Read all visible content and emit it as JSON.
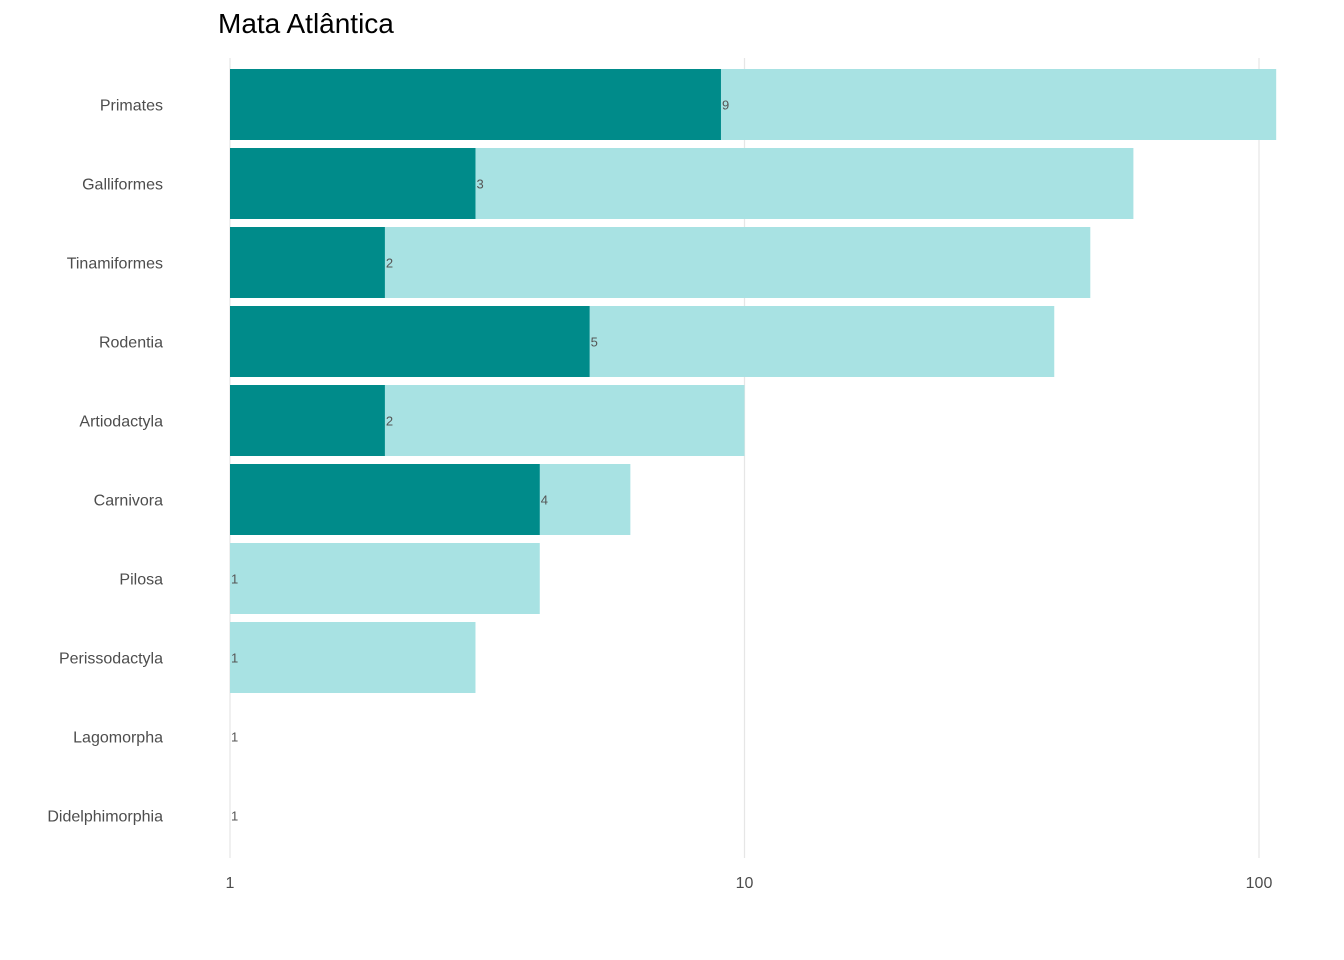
{
  "chart_data": {
    "type": "bar",
    "orientation": "horizontal",
    "title": "Mata Atlântica",
    "xlabel": "",
    "ylabel": "",
    "x_scale": "log10",
    "xlim": [
      1,
      110
    ],
    "x_ticks": [
      1,
      10,
      100
    ],
    "x_tick_labels": [
      "1",
      "10",
      "100"
    ],
    "grid": "vertical major lines",
    "legend": "none",
    "categories": [
      "Primates",
      "Galliformes",
      "Tinamiformes",
      "Rodentia",
      "Artiodactyla",
      "Carnivora",
      "Pilosa",
      "Perissodactyla",
      "Lagomorpha",
      "Didelphimorphia"
    ],
    "series": [
      {
        "values": [
          108,
          57,
          47,
          40,
          10,
          6,
          4,
          3,
          1,
          1
        ],
        "color": "#a8e2e3"
      },
      {
        "values": [
          9,
          3,
          2,
          5,
          2,
          4,
          1,
          1,
          1,
          1
        ],
        "color": "#008b8a"
      }
    ],
    "data_labels": [
      "9",
      "3",
      "2",
      "5",
      "2",
      "4",
      "1",
      "1",
      "1",
      "1"
    ]
  }
}
